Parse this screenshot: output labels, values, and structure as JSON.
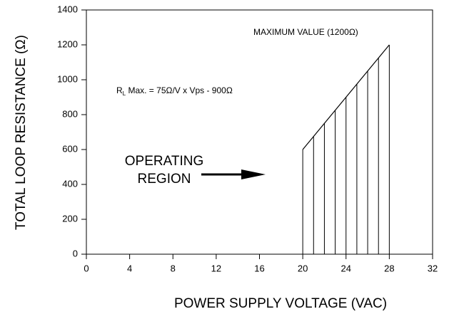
{
  "chart_data": {
    "type": "line",
    "xlabel": "POWER SUPPLY VOLTAGE (VAC)",
    "ylabel": "TOTAL LOOP RESISTANCE (Ω)",
    "x": [
      20,
      21,
      22,
      23,
      24,
      25,
      26,
      27,
      28
    ],
    "series": [
      {
        "color": "#000000",
        "values": [
          600,
          675,
          750,
          825,
          900,
          975,
          1050,
          1125,
          1200
        ]
      }
    ],
    "xlim": [
      0,
      32
    ],
    "xticks": [
      0,
      4,
      8,
      12,
      16,
      20,
      24,
      28,
      32
    ],
    "ylim": [
      0,
      1400
    ],
    "yticks": [
      0,
      200,
      400,
      600,
      800,
      1000,
      1200,
      1400
    ],
    "annotations": {
      "max": "MAXIMUM VALUE (1200Ω)",
      "formula": {
        "r": "R",
        "sub": "L",
        "rest": " Max. = 75Ω/V x Vps - 900Ω"
      },
      "region": [
        "OPERATING",
        "REGION"
      ]
    }
  }
}
